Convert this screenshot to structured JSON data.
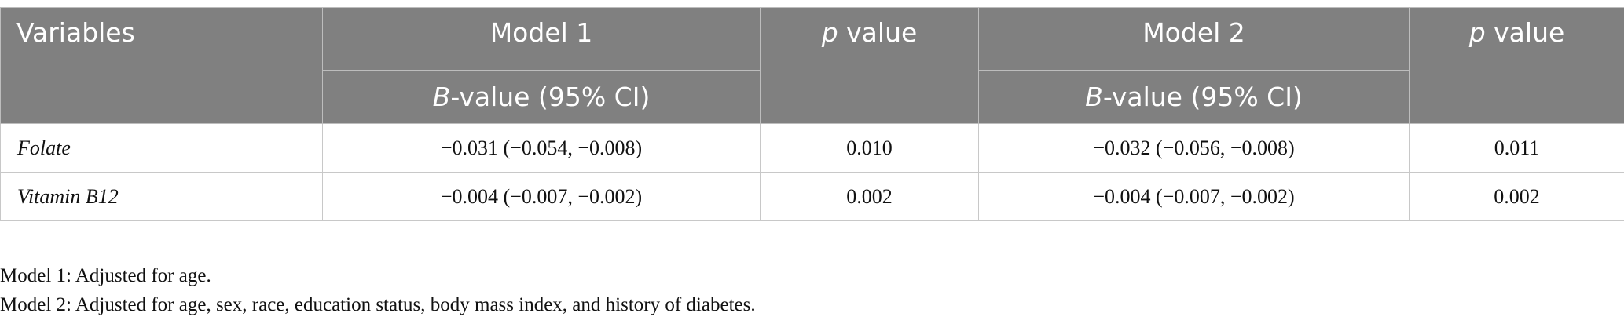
{
  "table": {
    "header": {
      "variables": "Variables",
      "model1": "Model 1",
      "model2": "Model 2",
      "p_italic": "p",
      "p_rest": " value",
      "b_italic": "B",
      "b_rest": "-value (95% CI)"
    },
    "rows": [
      {
        "variable": "Folate",
        "model1": "−0.031 (−0.054, −0.008)",
        "p1": "0.010",
        "model2": "−0.032 (−0.056, −0.008)",
        "p2": "0.011"
      },
      {
        "variable": "Vitamin B12",
        "model1": "−0.004 (−0.007, −0.002)",
        "p1": "0.002",
        "model2": "−0.004 (−0.007, −0.002)",
        "p2": "0.002"
      }
    ]
  },
  "notes": [
    "Model 1: Adjusted for age.",
    "Model 2: Adjusted for age, sex, race, education status, body mass index, and history of diabetes."
  ]
}
